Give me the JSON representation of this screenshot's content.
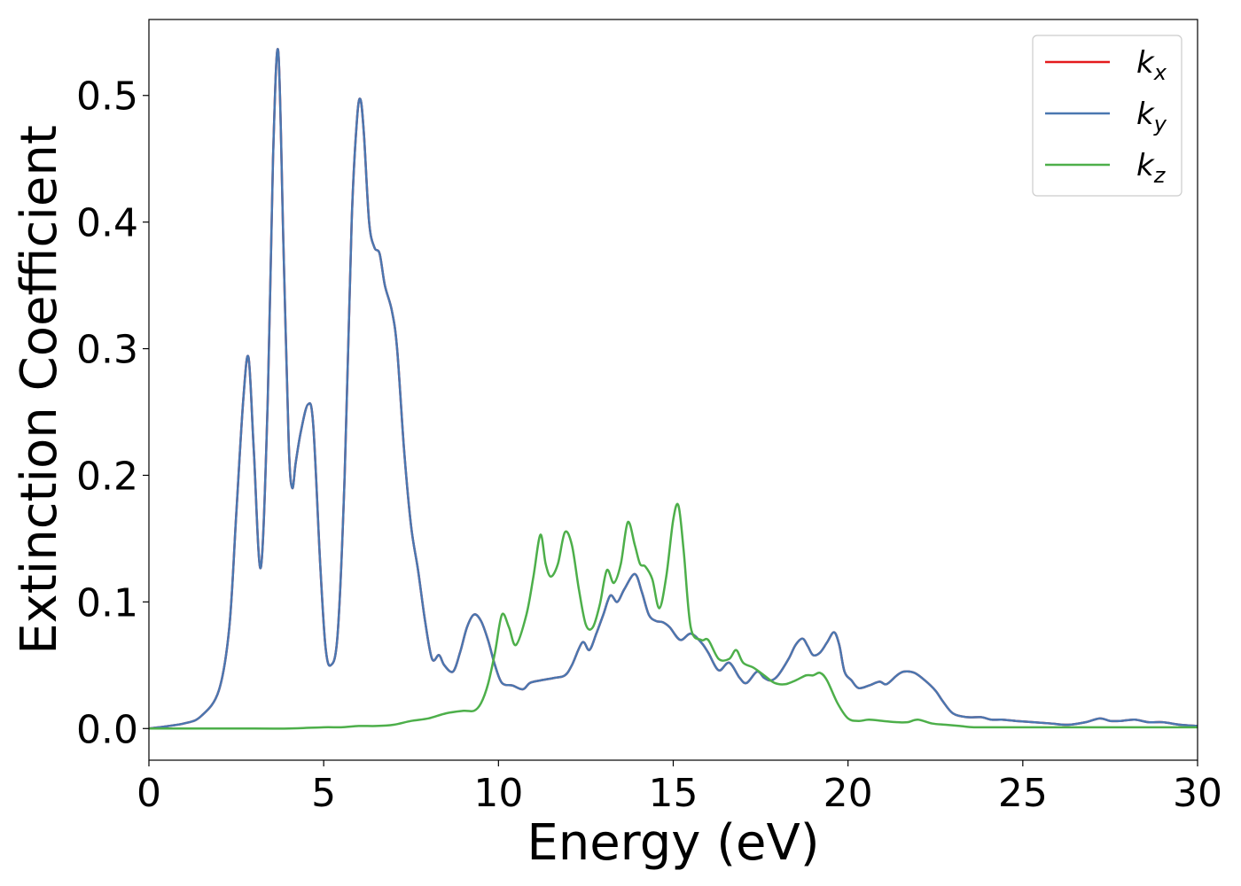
{
  "chart_data": {
    "type": "line",
    "title": "",
    "xlabel": "Energy (eV)",
    "ylabel": "Extinction Coefficient",
    "xlim": [
      0,
      30
    ],
    "ylim": [
      -0.025,
      0.56
    ],
    "xticks": [
      0,
      5,
      10,
      15,
      20,
      25,
      30
    ],
    "yticks": [
      0.0,
      0.1,
      0.2,
      0.3,
      0.4,
      0.5
    ],
    "grid": false,
    "legend_position": "top-right",
    "series": [
      {
        "name": "k",
        "sub": "x",
        "color": "#e41a1c",
        "x": [
          0,
          1,
          1.5,
          2,
          2.3,
          2.5,
          2.7,
          2.85,
          3.0,
          3.2,
          3.4,
          3.55,
          3.7,
          3.85,
          4.0,
          4.1,
          4.2,
          4.35,
          4.55,
          4.7,
          4.9,
          5.05,
          5.2,
          5.4,
          5.6,
          5.8,
          5.95,
          6.05,
          6.15,
          6.3,
          6.45,
          6.6,
          6.75,
          6.95,
          7.1,
          7.3,
          7.5,
          7.7,
          7.9,
          8.1,
          8.3,
          8.45,
          8.7,
          8.9,
          9.1,
          9.3,
          9.5,
          9.7,
          9.9,
          10.1,
          10.4,
          10.7,
          10.9,
          11.2,
          11.6,
          11.9,
          12.1,
          12.4,
          12.6,
          12.8,
          13.0,
          13.2,
          13.4,
          13.6,
          13.9,
          14.1,
          14.3,
          14.5,
          14.7,
          14.9,
          15.2,
          15.5,
          15.8,
          16.0,
          16.3,
          16.6,
          16.9,
          17.1,
          17.4,
          17.6,
          17.8,
          18.0,
          18.3,
          18.5,
          18.7,
          18.85,
          19.0,
          19.2,
          19.4,
          19.6,
          19.75,
          19.9,
          20.1,
          20.3,
          20.6,
          20.9,
          21.1,
          21.4,
          21.6,
          21.9,
          22.2,
          22.5,
          22.7,
          23.0,
          23.4,
          23.8,
          24.1,
          24.4,
          24.8,
          25.3,
          25.8,
          26.3,
          26.8,
          27.2,
          27.5,
          27.8,
          28.2,
          28.6,
          29.0,
          29.5,
          30
        ],
        "values": [
          0,
          0.004,
          0.01,
          0.03,
          0.08,
          0.17,
          0.26,
          0.293,
          0.22,
          0.127,
          0.26,
          0.45,
          0.535,
          0.38,
          0.225,
          0.19,
          0.21,
          0.235,
          0.256,
          0.24,
          0.13,
          0.065,
          0.05,
          0.075,
          0.2,
          0.4,
          0.48,
          0.497,
          0.47,
          0.4,
          0.38,
          0.375,
          0.35,
          0.33,
          0.3,
          0.22,
          0.16,
          0.125,
          0.085,
          0.055,
          0.058,
          0.05,
          0.045,
          0.06,
          0.08,
          0.09,
          0.085,
          0.07,
          0.05,
          0.036,
          0.034,
          0.031,
          0.036,
          0.038,
          0.04,
          0.042,
          0.05,
          0.068,
          0.062,
          0.075,
          0.09,
          0.105,
          0.1,
          0.11,
          0.122,
          0.108,
          0.09,
          0.085,
          0.084,
          0.08,
          0.07,
          0.075,
          0.068,
          0.06,
          0.046,
          0.052,
          0.04,
          0.036,
          0.045,
          0.04,
          0.038,
          0.042,
          0.055,
          0.066,
          0.071,
          0.065,
          0.058,
          0.06,
          0.068,
          0.076,
          0.066,
          0.045,
          0.038,
          0.032,
          0.034,
          0.037,
          0.035,
          0.042,
          0.045,
          0.044,
          0.038,
          0.03,
          0.022,
          0.012,
          0.009,
          0.009,
          0.007,
          0.007,
          0.006,
          0.005,
          0.004,
          0.003,
          0.005,
          0.008,
          0.006,
          0.006,
          0.007,
          0.005,
          0.005,
          0.003,
          0.002
        ]
      },
      {
        "name": "k",
        "sub": "y",
        "color": "#4a77b0",
        "x": [
          0,
          1,
          1.5,
          2,
          2.3,
          2.5,
          2.7,
          2.85,
          3.0,
          3.2,
          3.4,
          3.55,
          3.7,
          3.85,
          4.0,
          4.1,
          4.2,
          4.35,
          4.55,
          4.7,
          4.9,
          5.05,
          5.2,
          5.4,
          5.6,
          5.8,
          5.95,
          6.05,
          6.15,
          6.3,
          6.45,
          6.6,
          6.75,
          6.95,
          7.1,
          7.3,
          7.5,
          7.7,
          7.9,
          8.1,
          8.3,
          8.45,
          8.7,
          8.9,
          9.1,
          9.3,
          9.5,
          9.7,
          9.9,
          10.1,
          10.4,
          10.7,
          10.9,
          11.2,
          11.6,
          11.9,
          12.1,
          12.4,
          12.6,
          12.8,
          13.0,
          13.2,
          13.4,
          13.6,
          13.9,
          14.1,
          14.3,
          14.5,
          14.7,
          14.9,
          15.2,
          15.5,
          15.8,
          16.0,
          16.3,
          16.6,
          16.9,
          17.1,
          17.4,
          17.6,
          17.8,
          18.0,
          18.3,
          18.5,
          18.7,
          18.85,
          19.0,
          19.2,
          19.4,
          19.6,
          19.75,
          19.9,
          20.1,
          20.3,
          20.6,
          20.9,
          21.1,
          21.4,
          21.6,
          21.9,
          22.2,
          22.5,
          22.7,
          23.0,
          23.4,
          23.8,
          24.1,
          24.4,
          24.8,
          25.3,
          25.8,
          26.3,
          26.8,
          27.2,
          27.5,
          27.8,
          28.2,
          28.6,
          29.0,
          29.5,
          30
        ],
        "values": [
          0,
          0.004,
          0.01,
          0.03,
          0.08,
          0.17,
          0.26,
          0.293,
          0.22,
          0.127,
          0.26,
          0.45,
          0.535,
          0.38,
          0.225,
          0.19,
          0.21,
          0.235,
          0.256,
          0.24,
          0.13,
          0.065,
          0.05,
          0.075,
          0.2,
          0.4,
          0.48,
          0.497,
          0.47,
          0.4,
          0.38,
          0.375,
          0.35,
          0.33,
          0.3,
          0.22,
          0.16,
          0.125,
          0.085,
          0.055,
          0.058,
          0.05,
          0.045,
          0.06,
          0.08,
          0.09,
          0.085,
          0.07,
          0.05,
          0.036,
          0.034,
          0.031,
          0.036,
          0.038,
          0.04,
          0.042,
          0.05,
          0.068,
          0.062,
          0.075,
          0.09,
          0.105,
          0.1,
          0.11,
          0.122,
          0.108,
          0.09,
          0.085,
          0.084,
          0.08,
          0.07,
          0.075,
          0.068,
          0.06,
          0.046,
          0.052,
          0.04,
          0.036,
          0.045,
          0.04,
          0.038,
          0.042,
          0.055,
          0.066,
          0.071,
          0.065,
          0.058,
          0.06,
          0.068,
          0.076,
          0.066,
          0.045,
          0.038,
          0.032,
          0.034,
          0.037,
          0.035,
          0.042,
          0.045,
          0.044,
          0.038,
          0.03,
          0.022,
          0.012,
          0.009,
          0.009,
          0.007,
          0.007,
          0.006,
          0.005,
          0.004,
          0.003,
          0.005,
          0.008,
          0.006,
          0.006,
          0.007,
          0.005,
          0.005,
          0.003,
          0.002
        ]
      },
      {
        "name": "k",
        "sub": "z",
        "color": "#4daf4a",
        "x": [
          0,
          3,
          4,
          5,
          5.5,
          6,
          6.5,
          7,
          7.5,
          8,
          8.5,
          9,
          9.3,
          9.5,
          9.7,
          9.9,
          10.1,
          10.3,
          10.5,
          10.8,
          11.0,
          11.2,
          11.35,
          11.5,
          11.7,
          11.9,
          12.1,
          12.3,
          12.5,
          12.7,
          12.9,
          13.1,
          13.3,
          13.5,
          13.7,
          13.9,
          14.05,
          14.2,
          14.4,
          14.6,
          14.8,
          15.0,
          15.15,
          15.3,
          15.5,
          15.8,
          16.0,
          16.3,
          16.6,
          16.8,
          17.0,
          17.3,
          17.6,
          17.9,
          18.2,
          18.5,
          18.8,
          19.0,
          19.2,
          19.4,
          19.7,
          20.0,
          20.3,
          20.6,
          21.0,
          21.4,
          21.7,
          22.0,
          22.4,
          22.8,
          23.2,
          23.6,
          24,
          25,
          26,
          28,
          30
        ],
        "values": [
          0,
          0,
          0,
          0.001,
          0.001,
          0.002,
          0.002,
          0.003,
          0.006,
          0.008,
          0.012,
          0.014,
          0.014,
          0.02,
          0.035,
          0.06,
          0.09,
          0.08,
          0.066,
          0.09,
          0.12,
          0.153,
          0.13,
          0.12,
          0.13,
          0.155,
          0.145,
          0.11,
          0.082,
          0.08,
          0.098,
          0.125,
          0.115,
          0.13,
          0.163,
          0.145,
          0.13,
          0.128,
          0.118,
          0.095,
          0.12,
          0.165,
          0.176,
          0.14,
          0.08,
          0.07,
          0.07,
          0.055,
          0.055,
          0.062,
          0.052,
          0.048,
          0.042,
          0.036,
          0.035,
          0.038,
          0.042,
          0.042,
          0.044,
          0.038,
          0.02,
          0.008,
          0.006,
          0.007,
          0.006,
          0.005,
          0.005,
          0.007,
          0.004,
          0.003,
          0.002,
          0.001,
          0.001,
          0.001,
          0.001,
          0.001,
          0.001
        ]
      }
    ]
  }
}
